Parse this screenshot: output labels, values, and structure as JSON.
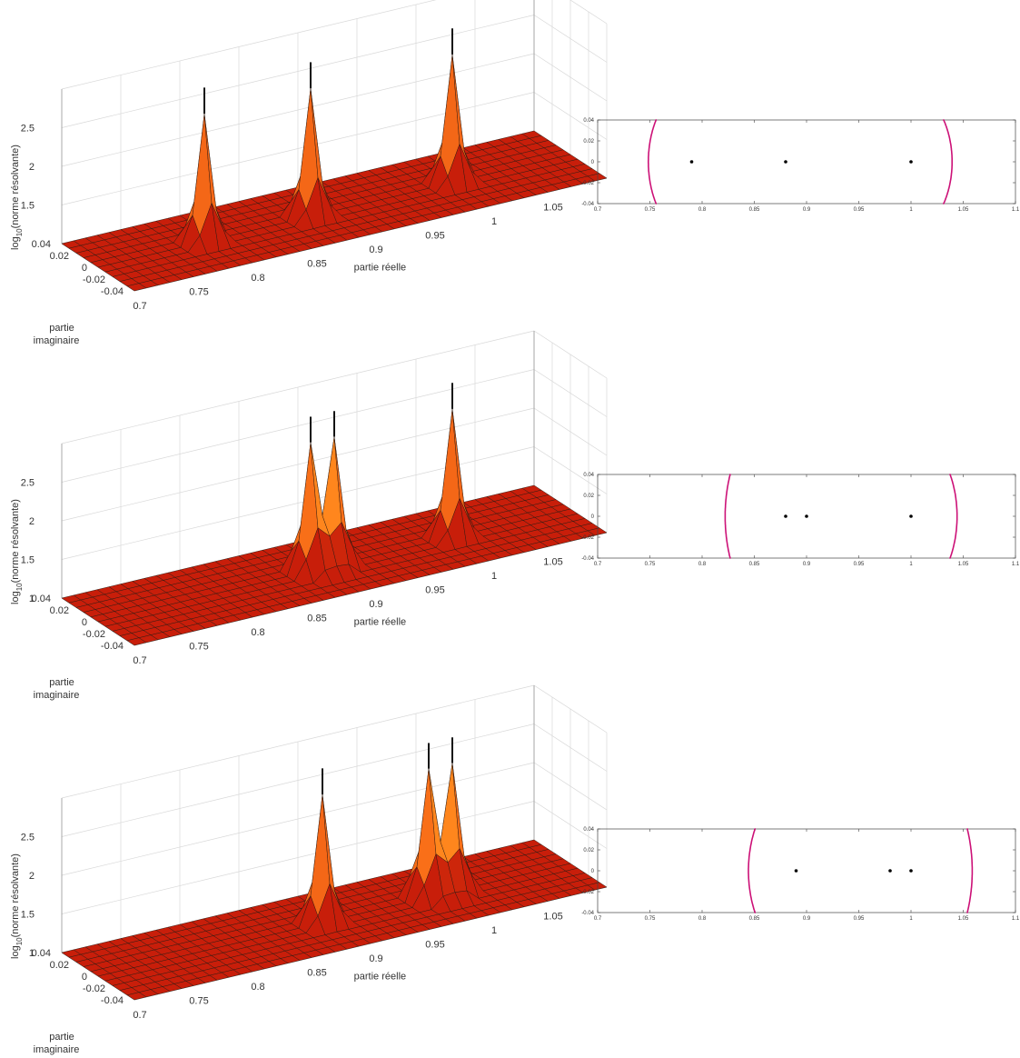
{
  "axes": {
    "x_label": "partie réelle",
    "y_label_line1": "partie",
    "y_label_line2": "imaginaire",
    "z_label_prefix": "log",
    "z_label_sub": "10",
    "z_label_suffix": "(norme résolvante)"
  },
  "chart_data": [
    {
      "type": "surface",
      "x_range": [
        0.7,
        1.1
      ],
      "y_range": [
        -0.04,
        0.04
      ],
      "z_range": [
        1,
        3
      ],
      "x_ticks": [
        "0.7",
        "0.75",
        "0.8",
        "0.85",
        "0.9",
        "0.95",
        "1",
        "1.05"
      ],
      "y_ticks": [
        "-0.04",
        "-0.02",
        "0",
        "0.02",
        "0.04"
      ],
      "z_ticks": [
        "1.5",
        "2",
        "2.5"
      ],
      "eigenvalues": [
        [
          0.79,
          0
        ],
        [
          0.88,
          0
        ],
        [
          1.0,
          0
        ]
      ],
      "colormap": [
        "#c81e0a",
        "#ff7a1a",
        "#ffe033"
      ]
    },
    {
      "type": "contour",
      "xlim": [
        0.7,
        1.1
      ],
      "ylim": [
        -0.04,
        0.04
      ],
      "x_ticks": [
        "0.7",
        "0.75",
        "0.8",
        "0.85",
        "0.9",
        "0.95",
        "1",
        "1.05",
        "1.1"
      ],
      "y_ticks": [
        "0.04",
        "0.02",
        "0",
        "-0.02",
        "-0.04"
      ],
      "eigenvalues": [
        [
          0.79,
          0
        ],
        [
          0.88,
          0
        ],
        [
          1.0,
          0
        ]
      ],
      "contour_color": "#cc1177"
    },
    {
      "type": "surface",
      "x_range": [
        0.7,
        1.1
      ],
      "y_range": [
        -0.04,
        0.04
      ],
      "z_range": [
        1,
        3
      ],
      "x_ticks": [
        "0.7",
        "0.75",
        "0.8",
        "0.85",
        "0.9",
        "0.95",
        "1",
        "1.05"
      ],
      "y_ticks": [
        "-0.04",
        "-0.02",
        "0",
        "0.02",
        "0.04"
      ],
      "z_ticks": [
        "1",
        "1.5",
        "2",
        "2.5"
      ],
      "eigenvalues": [
        [
          0.88,
          0
        ],
        [
          0.9,
          0
        ],
        [
          1.0,
          0
        ]
      ],
      "colormap": [
        "#c81e0a",
        "#ff7a1a",
        "#ffe033"
      ]
    },
    {
      "type": "contour",
      "xlim": [
        0.7,
        1.1
      ],
      "ylim": [
        -0.04,
        0.04
      ],
      "x_ticks": [
        "0.7",
        "0.75",
        "0.8",
        "0.85",
        "0.9",
        "0.95",
        "1",
        "1.05",
        "1.1"
      ],
      "y_ticks": [
        "0.04",
        "0.02",
        "0",
        "-0.02",
        "-0.04"
      ],
      "eigenvalues": [
        [
          0.88,
          0
        ],
        [
          0.9,
          0
        ],
        [
          1.0,
          0
        ]
      ],
      "contour_color": "#cc1177"
    },
    {
      "type": "surface",
      "x_range": [
        0.7,
        1.1
      ],
      "y_range": [
        -0.04,
        0.04
      ],
      "z_range": [
        1,
        3
      ],
      "x_ticks": [
        "0.7",
        "0.75",
        "0.8",
        "0.85",
        "0.9",
        "0.95",
        "1",
        "1.05"
      ],
      "y_ticks": [
        "-0.04",
        "-0.02",
        "0",
        "0.02",
        "0.04"
      ],
      "z_ticks": [
        "1",
        "1.5",
        "2",
        "2.5"
      ],
      "eigenvalues": [
        [
          0.89,
          0
        ],
        [
          0.98,
          0
        ],
        [
          1.0,
          0
        ]
      ],
      "colormap": [
        "#c81e0a",
        "#ff7a1a",
        "#ffe033"
      ]
    },
    {
      "type": "contour",
      "xlim": [
        0.7,
        1.1
      ],
      "ylim": [
        -0.04,
        0.04
      ],
      "x_ticks": [
        "0.7",
        "0.75",
        "0.8",
        "0.85",
        "0.9",
        "0.95",
        "1",
        "1.05",
        "1.1"
      ],
      "y_ticks": [
        "0.04",
        "0.02",
        "0",
        "-0.02",
        "-0.04"
      ],
      "eigenvalues": [
        [
          0.89,
          0
        ],
        [
          0.98,
          0
        ],
        [
          1.0,
          0
        ]
      ],
      "contour_color": "#cc1177"
    }
  ]
}
